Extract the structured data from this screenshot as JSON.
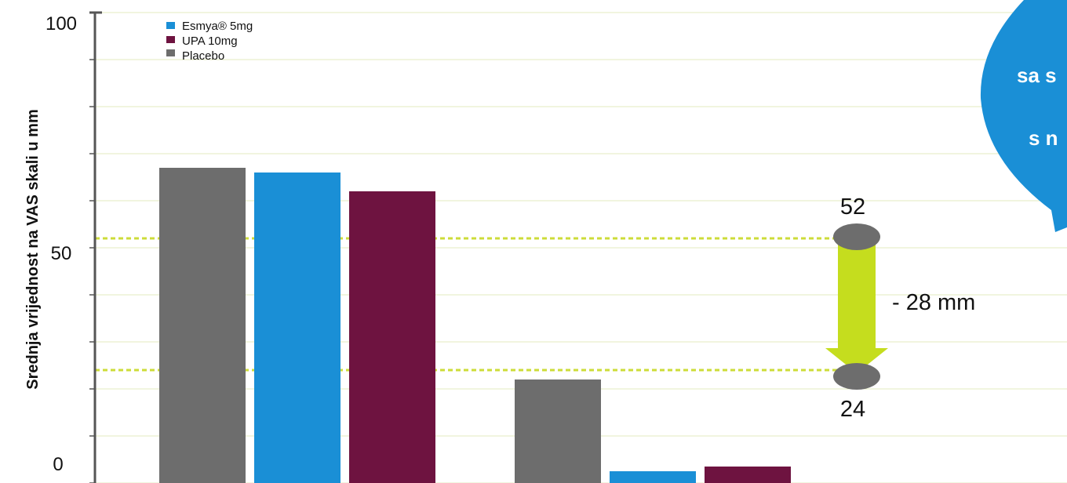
{
  "chart_data": {
    "type": "bar",
    "title": "",
    "ylabel": "Srednja vrijednost na VAS skali   u mm",
    "xlabel": "",
    "ylim": [
      0,
      100
    ],
    "yticks": [
      "0",
      "50",
      "100"
    ],
    "categories": [
      "",
      ""
    ],
    "series": [
      {
        "name": "Placebo",
        "values": [
          67,
          22
        ],
        "color": "#6d6d6d"
      },
      {
        "name": "Esmya® 5mg",
        "values": [
          66,
          2.5
        ],
        "color": "#1a8fd6"
      },
      {
        "name": "UPA 10mg",
        "values": [
          62,
          3.5
        ],
        "color": "#6e1340"
      }
    ],
    "legend": {
      "placement": "top-left",
      "entries": [
        {
          "label": "Esmya® 5mg",
          "swatch": "#1a8fd6"
        },
        {
          "label": "UPA 10mg",
          "swatch": "#6e1340"
        },
        {
          "label": "Placebo",
          "swatch": "#6d6d6d"
        }
      ]
    },
    "reference_lines": [
      52,
      24
    ],
    "annotations": {
      "top_value": "52",
      "bottom_value": "24",
      "difference": "- 28 mm"
    },
    "bubble_lines": [
      "sa s",
      "s n"
    ],
    "grid": true,
    "colors": {
      "grid": "#e3ebbf",
      "reference": "#cddc39",
      "arrow": "#c5dd1e",
      "bubble": "#1a8fd6",
      "cylinder": "#6d6d6d"
    }
  }
}
